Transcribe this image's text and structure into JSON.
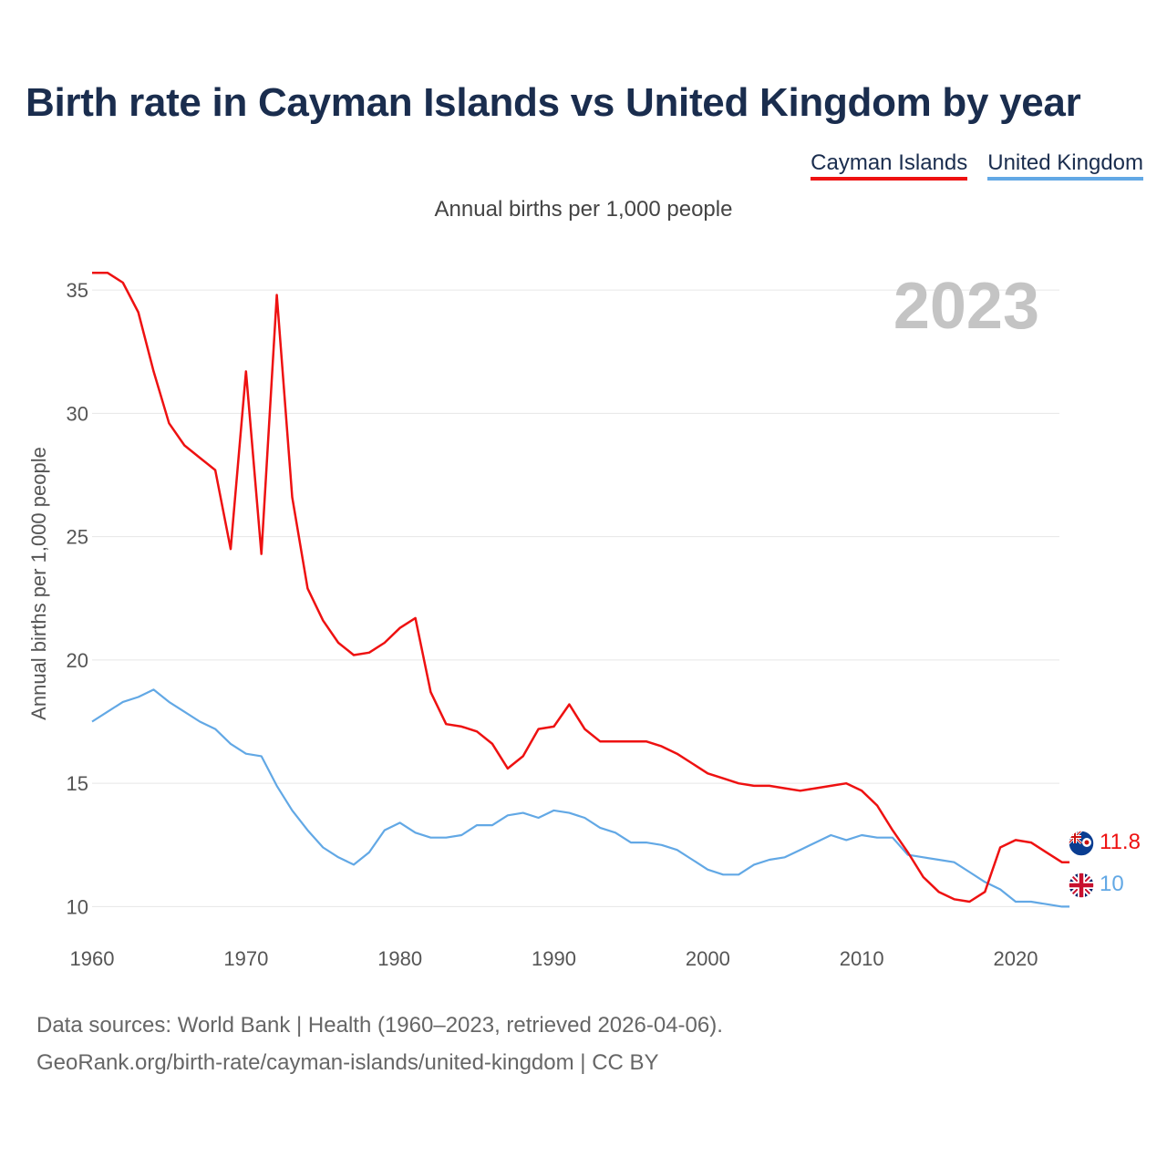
{
  "title": "Birth rate in Cayman Islands vs United Kingdom by year",
  "subtitle": "Annual births per 1,000 people",
  "footer": {
    "line1": "Data sources: World Bank | Health (1960–2023, retrieved 2026-04-06).",
    "line2": "GeoRank.org/birth-rate/cayman-islands/united-kingdom | CC BY"
  },
  "colors": {
    "cayman": "#ee1111",
    "uk": "#62a8e5",
    "title": "#1a2d4e"
  },
  "chart_data": {
    "type": "line",
    "title": "Birth rate in Cayman Islands vs United Kingdom by year",
    "xlabel": "",
    "ylabel": "Annual births per 1,000 people",
    "xlim": [
      1960,
      2024.5
    ],
    "ylim": [
      8.5,
      37
    ],
    "x_ticks": [
      1960,
      1970,
      1980,
      1990,
      2000,
      2010,
      2020
    ],
    "y_ticks": [
      10,
      15,
      20,
      25,
      30,
      35
    ],
    "grid": true,
    "year_label": "2023",
    "legend_position": "top-right",
    "x": [
      1960,
      1961,
      1962,
      1963,
      1964,
      1965,
      1966,
      1967,
      1968,
      1969,
      1970,
      1971,
      1972,
      1973,
      1974,
      1975,
      1976,
      1977,
      1978,
      1979,
      1980,
      1981,
      1982,
      1983,
      1984,
      1985,
      1986,
      1987,
      1988,
      1989,
      1990,
      1991,
      1992,
      1993,
      1994,
      1995,
      1996,
      1997,
      1998,
      1999,
      2000,
      2001,
      2002,
      2003,
      2004,
      2005,
      2006,
      2007,
      2008,
      2009,
      2010,
      2011,
      2012,
      2013,
      2014,
      2015,
      2016,
      2017,
      2018,
      2019,
      2020,
      2021,
      2022,
      2023
    ],
    "series": [
      {
        "name": "Cayman Islands",
        "color": "#ee1111",
        "end_label": "11.8",
        "values": [
          35.7,
          35.7,
          35.3,
          34.1,
          31.7,
          29.6,
          28.7,
          28.2,
          27.7,
          24.5,
          31.7,
          24.3,
          34.8,
          26.6,
          22.9,
          21.6,
          20.7,
          20.2,
          20.3,
          20.7,
          21.3,
          21.7,
          18.7,
          17.4,
          17.3,
          17.1,
          16.6,
          15.6,
          16.1,
          17.2,
          17.3,
          18.2,
          17.2,
          16.7,
          16.7,
          16.7,
          16.7,
          16.5,
          16.2,
          15.8,
          15.4,
          15.2,
          15.0,
          14.9,
          14.9,
          14.8,
          14.7,
          14.8,
          14.9,
          15.0,
          14.7,
          14.1,
          13.1,
          12.2,
          11.2,
          10.6,
          10.3,
          10.2,
          10.6,
          12.4,
          12.7,
          12.6,
          12.2,
          11.8
        ]
      },
      {
        "name": "United Kingdom",
        "color": "#62a8e5",
        "end_label": "10",
        "values": [
          17.5,
          17.9,
          18.3,
          18.5,
          18.8,
          18.3,
          17.9,
          17.5,
          17.2,
          16.6,
          16.2,
          16.1,
          14.9,
          13.9,
          13.1,
          12.4,
          12.0,
          11.7,
          12.2,
          13.1,
          13.4,
          13.0,
          12.8,
          12.8,
          12.9,
          13.3,
          13.3,
          13.7,
          13.8,
          13.6,
          13.9,
          13.8,
          13.6,
          13.2,
          13.0,
          12.6,
          12.6,
          12.5,
          12.3,
          11.9,
          11.5,
          11.3,
          11.3,
          11.7,
          11.9,
          12.0,
          12.3,
          12.6,
          12.9,
          12.7,
          12.9,
          12.8,
          12.8,
          12.1,
          12.0,
          11.9,
          11.8,
          11.4,
          11.0,
          10.7,
          10.2,
          10.2,
          10.1,
          10.0
        ]
      }
    ]
  }
}
